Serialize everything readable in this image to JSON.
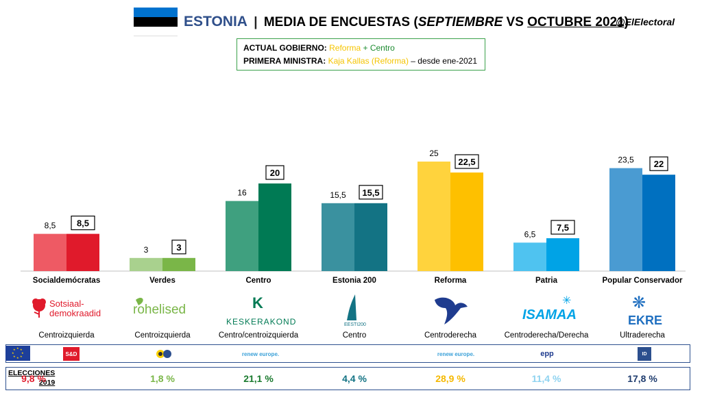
{
  "header": {
    "country": "ESTONIA",
    "separator": "|",
    "title_part1": "MEDIA DE ENCUESTAS (",
    "title_sept": "SEPTIEMBRE",
    "title_vs": " VS ",
    "title_oct": "OCTUBRE 2021",
    "title_close": ")",
    "handle": "@ElElectoral"
  },
  "government": {
    "gov_label": "ACTUAL GOBIERNO:",
    "gov_party1": "Reforma",
    "gov_plus": " + ",
    "gov_party2": "Centro",
    "pm_label": "PRIMERA MINISTRA:",
    "pm_name": "Kaja Kallas (Reforma)",
    "pm_since": " – desde ene-2021"
  },
  "colors": {
    "sd": [
      "#ee5a64",
      "#e01a2b"
    ],
    "verdes": [
      "#a9d18e",
      "#7ab648"
    ],
    "centro": [
      "#3fa07f",
      "#007a54"
    ],
    "e200": [
      "#3a919f",
      "#137384"
    ],
    "reforma": [
      "#ffd33d",
      "#fec000"
    ],
    "patria": [
      "#4fc3f0",
      "#00a3e6"
    ],
    "ekre": [
      "#4a9bd2",
      "#0070c0"
    ]
  },
  "chart_data": {
    "type": "bar",
    "categories": [
      "Socialdemócratas",
      "Verdes",
      "Centro",
      "Estonia 200",
      "Reforma",
      "Patria",
      "Popular Conservador"
    ],
    "series": [
      {
        "name": "Septiembre",
        "values": [
          8.5,
          3,
          16,
          15.5,
          25,
          6.5,
          23.5
        ]
      },
      {
        "name": "Octubre 2021",
        "values": [
          8.5,
          3,
          20,
          15.5,
          22.5,
          7.5,
          22
        ]
      }
    ],
    "value_labels_sep": [
      "8,5",
      "3",
      "16",
      "15,5",
      "25",
      "6,5",
      "23,5"
    ],
    "value_labels_oct": [
      "8,5",
      "3",
      "20",
      "15,5",
      "22,5",
      "7,5",
      "22"
    ],
    "ylim": [
      0,
      25
    ],
    "grid": false,
    "legend": "none"
  },
  "parties": [
    {
      "name": "Socialdemócratas",
      "logo_text": "Sotsiaal-\ndemokraadid",
      "logo_line1": "Sotsiaal-",
      "logo_line2": "demokraadid",
      "ideology": "Centroizquierda",
      "eu_group": "S&D",
      "result": "9,8 %",
      "result_color": "#e01a2b"
    },
    {
      "name": "Verdes",
      "logo_line1": "rohelised",
      "ideology": "Centroizquierda",
      "eu_group": "",
      "result": "1,8 %",
      "result_color": "#7ab648"
    },
    {
      "name": "Centro",
      "logo_line1": "KESKERAKOND",
      "ideology": "Centro/centroizquierda",
      "eu_group": "renew europe.",
      "result": "21,1 %",
      "result_color": "#1a7a2e"
    },
    {
      "name": "Estonia 200",
      "logo_line1": "EESTI200",
      "ideology": "Centro",
      "eu_group": "",
      "result": "4,4 %",
      "result_color": "#137384"
    },
    {
      "name": "Reforma",
      "logo_line1": "",
      "ideology": "Centroderecha",
      "eu_group": "renew europe.",
      "result": "28,9 %",
      "result_color": "#f5b800"
    },
    {
      "name": "Patria",
      "logo_line1": "ISAMAA",
      "ideology": "Centroderecha/Derecha",
      "eu_group": "epp",
      "result": "11,4 %",
      "result_color": "#8fd3f0"
    },
    {
      "name": "Popular Conservador",
      "logo_line1": "EKRE",
      "ideology": "Ultraderecha",
      "eu_group": "ID",
      "result": "17,8 %",
      "result_color": "#1f3c6e"
    }
  ],
  "elections": {
    "label_line1": "ELECCIONES",
    "label_line2": "2019"
  }
}
